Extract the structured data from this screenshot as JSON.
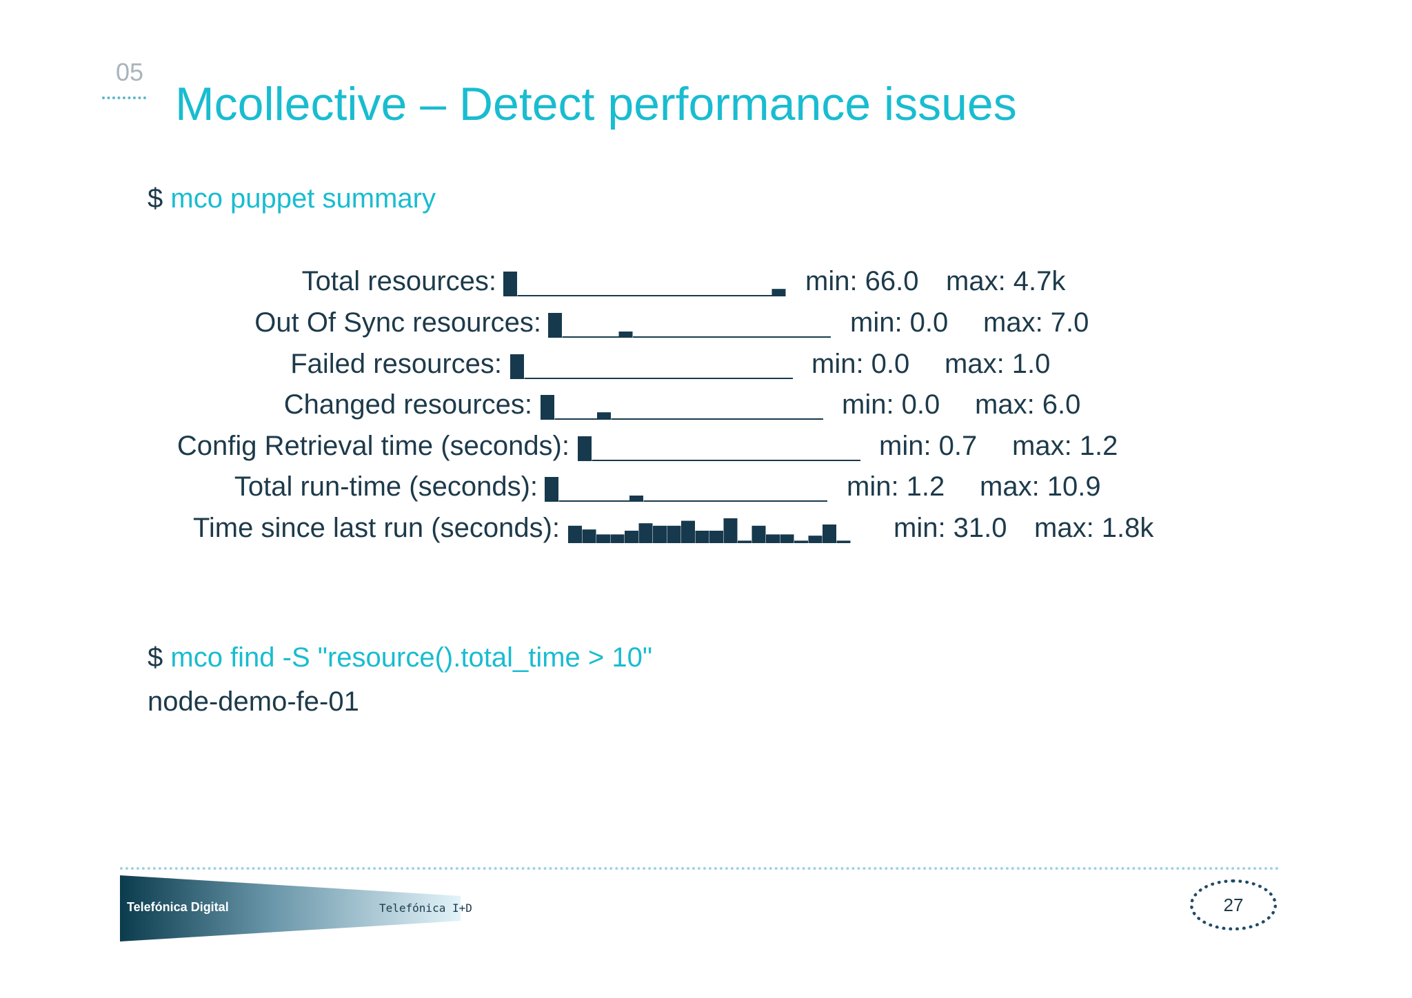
{
  "slide": {
    "section": "05",
    "title": "Mcollective – Detect performance issues",
    "page_number": "27"
  },
  "command1": {
    "prompt": "$",
    "text": "mco puppet summary"
  },
  "summary": [
    {
      "label": "Total resources:",
      "min": "min: 66.0",
      "max": "max: 4.7k",
      "bars": [
        1,
        0.05,
        0.05,
        0.05,
        0.05,
        0.05,
        0.05,
        0.05,
        0.05,
        0.05,
        0.05,
        0.05,
        0.05,
        0.05,
        0.05,
        0.05,
        0.05,
        0.05,
        0.05,
        0.3
      ]
    },
    {
      "label": "Out Of Sync resources:",
      "min": "min: 0.0",
      "max": "max: 7.0",
      "bars": [
        1,
        0.05,
        0.05,
        0.05,
        0.05,
        0.25,
        0.05,
        0.05,
        0.05,
        0.05,
        0.05,
        0.05,
        0.05,
        0.05,
        0.05,
        0.05,
        0.05,
        0.05,
        0.05,
        0.05
      ]
    },
    {
      "label": "Failed resources:",
      "min": "min: 0.0",
      "max": "max: 1.0",
      "bars": [
        1,
        0.05,
        0.05,
        0.05,
        0.05,
        0.05,
        0.05,
        0.05,
        0.05,
        0.05,
        0.05,
        0.05,
        0.05,
        0.05,
        0.05,
        0.05,
        0.05,
        0.05,
        0.05,
        0.05
      ]
    },
    {
      "label": "Changed resources:",
      "min": "min: 0.0",
      "max": "max: 6.0",
      "bars": [
        1,
        0.05,
        0.05,
        0.05,
        0.3,
        0.05,
        0.05,
        0.05,
        0.05,
        0.05,
        0.05,
        0.05,
        0.05,
        0.05,
        0.05,
        0.05,
        0.05,
        0.05,
        0.05,
        0.05
      ]
    },
    {
      "label": "Config Retrieval time (seconds):",
      "min": "min: 0.7",
      "max": "max: 1.2",
      "bars": [
        1,
        0.05,
        0.05,
        0.05,
        0.05,
        0.05,
        0.05,
        0.05,
        0.05,
        0.05,
        0.05,
        0.05,
        0.05,
        0.05,
        0.05,
        0.05,
        0.05,
        0.05,
        0.05,
        0.05
      ]
    },
    {
      "label": "Total run-time (seconds):",
      "min": "min: 1.2",
      "max": "max: 10.9",
      "bars": [
        1,
        0.05,
        0.05,
        0.05,
        0.05,
        0.05,
        0.25,
        0.05,
        0.05,
        0.05,
        0.05,
        0.05,
        0.05,
        0.05,
        0.05,
        0.05,
        0.05,
        0.05,
        0.05,
        0.05
      ]
    },
    {
      "label": "Time since last run (seconds):",
      "min": "min: 31.0",
      "max": "max: 1.8k",
      "bars": [
        0.7,
        0.55,
        0.35,
        0.35,
        0.5,
        0.8,
        0.7,
        0.7,
        0.9,
        0.5,
        0.5,
        1,
        0.1,
        0.7,
        0.35,
        0.35,
        0.1,
        0.3,
        0.75,
        0.1
      ]
    }
  ],
  "command2": {
    "prompt": "$",
    "text": "mco find -S \"resource().total_time > 10\""
  },
  "command2_output": "node-demo-fe-01",
  "footer": {
    "brand_left": "Telefónica Digital",
    "brand_right": "Telefónica I+D"
  },
  "colors": {
    "accent": "#19bcd0",
    "text": "#1d3a4a",
    "bar": "#16394d"
  }
}
